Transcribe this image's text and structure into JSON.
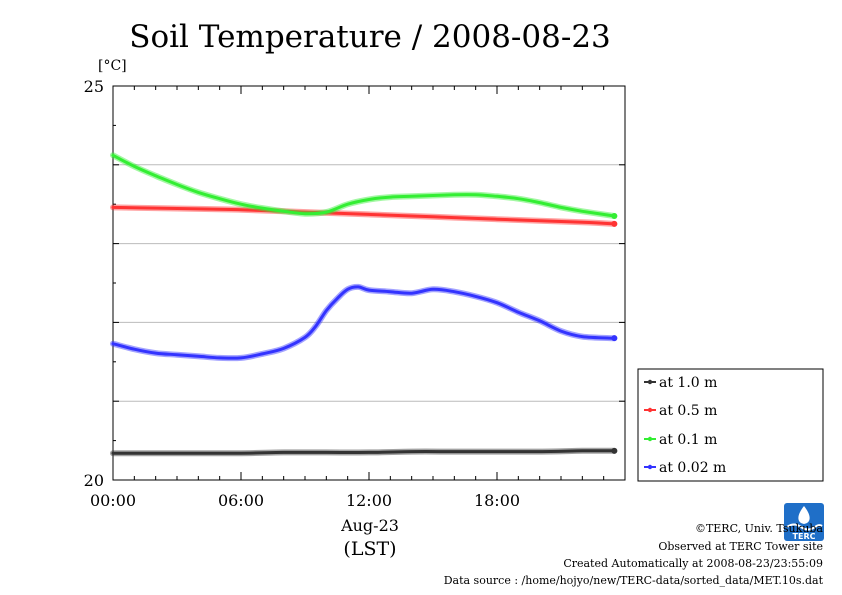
{
  "chart_data": {
    "type": "line",
    "title": "Soil Temperature / 2008-08-23",
    "ylabel": "[°C]",
    "ylim": [
      20,
      25
    ],
    "y_tick_labels": [
      "25",
      "20"
    ],
    "xlim": [
      0,
      24
    ],
    "x_tick_labels": [
      "00:00",
      "06:00",
      "12:00",
      "18:00"
    ],
    "x_ticks": [
      0,
      6,
      12,
      18
    ],
    "xlabel_date": "Aug-23",
    "xlabel_unit": "(LST)",
    "grid": true,
    "legend_placement": "right",
    "series": [
      {
        "name": "at 1.0 m",
        "color": "#333333",
        "x": [
          0,
          2,
          4,
          6,
          8,
          10,
          12,
          14,
          16,
          18,
          20,
          22,
          23.5
        ],
        "y": [
          20.34,
          20.34,
          20.34,
          20.34,
          20.35,
          20.35,
          20.35,
          20.36,
          20.36,
          20.36,
          20.36,
          20.37,
          20.37
        ]
      },
      {
        "name": "at 0.5 m",
        "color": "#ff3333",
        "x": [
          0,
          2,
          4,
          6,
          8,
          10,
          12,
          14,
          16,
          18,
          20,
          22,
          23.5
        ],
        "y": [
          23.46,
          23.45,
          23.44,
          23.43,
          23.41,
          23.39,
          23.37,
          23.35,
          23.33,
          23.31,
          23.29,
          23.27,
          23.25
        ]
      },
      {
        "name": "at 0.1 m",
        "color": "#33ee33",
        "x": [
          0,
          1,
          2,
          3,
          4,
          5,
          6,
          7,
          8,
          9,
          10,
          11,
          12,
          13,
          14,
          15,
          16,
          17,
          18,
          19,
          20,
          21,
          22,
          23.5
        ],
        "y": [
          24.12,
          23.98,
          23.86,
          23.75,
          23.65,
          23.57,
          23.5,
          23.45,
          23.41,
          23.38,
          23.4,
          23.5,
          23.56,
          23.59,
          23.6,
          23.61,
          23.62,
          23.62,
          23.6,
          23.57,
          23.52,
          23.46,
          23.41,
          23.35
        ]
      },
      {
        "name": "at 0.02 m",
        "color": "#3333ff",
        "x": [
          0,
          1,
          2,
          3,
          4,
          5,
          6,
          7,
          8,
          9,
          9.5,
          10,
          10.5,
          11,
          11.5,
          12,
          13,
          14,
          15,
          16,
          17,
          18,
          19,
          20,
          21,
          22,
          23.5
        ],
        "y": [
          21.73,
          21.66,
          21.61,
          21.59,
          21.57,
          21.55,
          21.55,
          21.6,
          21.67,
          21.81,
          21.95,
          22.15,
          22.3,
          22.42,
          22.45,
          22.41,
          22.39,
          22.37,
          22.42,
          22.39,
          22.33,
          22.25,
          22.13,
          22.02,
          21.89,
          21.82,
          21.8
        ]
      }
    ]
  },
  "footer": {
    "copyright": "©TERC, Univ. Tsukuba",
    "observed": "Observed at TERC Tower site",
    "created": "Created Automatically at 2008-08-23/23:55:09",
    "source": "Data source : /home/hojyo/new/TERC-data/sorted_data/MET.10s.dat"
  },
  "logo": {
    "text": "TERC",
    "color": "#1f6fc8"
  }
}
